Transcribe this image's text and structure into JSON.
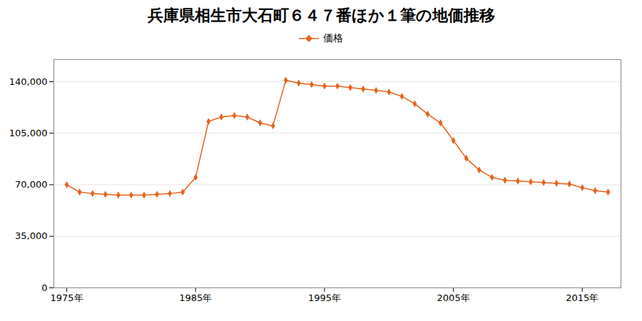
{
  "chart_data": {
    "type": "line",
    "title": "兵庫県相生市大石町６４７番ほか１筆の地価推移",
    "x": [
      1975,
      1976,
      1977,
      1978,
      1979,
      1980,
      1981,
      1982,
      1983,
      1984,
      1985,
      1986,
      1987,
      1988,
      1989,
      1990,
      1991,
      1992,
      1993,
      1994,
      1995,
      1996,
      1997,
      1998,
      1999,
      2000,
      2001,
      2002,
      2003,
      2004,
      2005,
      2006,
      2007,
      2008,
      2009,
      2010,
      2011,
      2012,
      2013,
      2014,
      2015,
      2016,
      2017
    ],
    "series": [
      {
        "name": "価格",
        "color": "#e8621a",
        "marker": "diamond",
        "values": [
          70000,
          65000,
          64000,
          63500,
          63000,
          63000,
          63000,
          63500,
          64000,
          65000,
          75000,
          113000,
          116000,
          117000,
          116000,
          112000,
          110000,
          141000,
          139000,
          138000,
          137000,
          137000,
          136000,
          135000,
          134000,
          133000,
          130000,
          125000,
          118000,
          112000,
          100000,
          88000,
          80000,
          75000,
          73000,
          72500,
          72000,
          71500,
          71000,
          70500,
          68000,
          66000,
          65000
        ]
      }
    ],
    "xlim": [
      1974,
      2018
    ],
    "xticks": [
      {
        "value": 1975,
        "label": "1975年"
      },
      {
        "value": 1985,
        "label": "1985年"
      },
      {
        "value": 1995,
        "label": "1995年"
      },
      {
        "value": 2005,
        "label": "2005年"
      },
      {
        "value": 2015,
        "label": "2015年"
      }
    ],
    "ylim": [
      0,
      155000
    ],
    "yticks": [
      0,
      {
        "value": 35000,
        "label": "35,000"
      },
      {
        "value": 70000,
        "label": "70,000"
      },
      {
        "value": 105000,
        "label": "105,000"
      },
      {
        "value": 140000,
        "label": "140,000"
      }
    ],
    "grid": "y",
    "legend": "top"
  }
}
